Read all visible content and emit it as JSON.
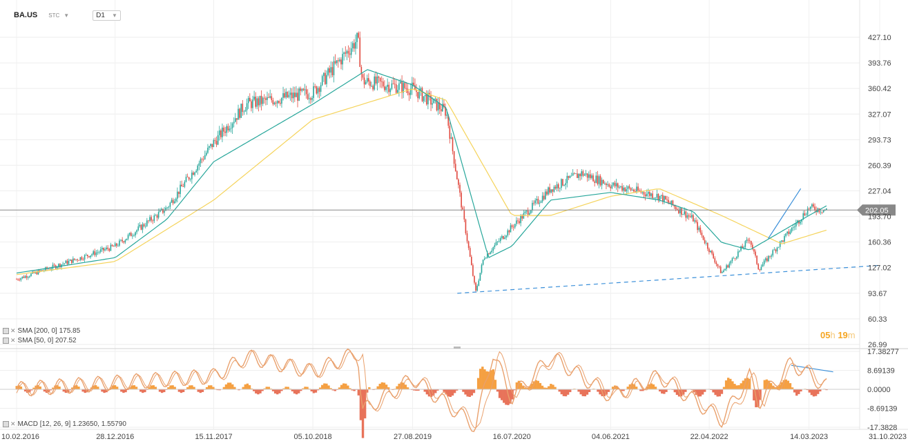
{
  "header": {
    "symbol": "BA.US",
    "exchange": "STC",
    "timeframe": "D1",
    "dropdown_icon": "chevron-down-icon"
  },
  "countdown": {
    "hours": "05",
    "h": "h",
    "minutes": "19",
    "m": "m"
  },
  "indicators": {
    "sma200": {
      "text": "SMA [200, 0] 175.85",
      "color": "#f5d35a"
    },
    "sma50": {
      "text": "SMA [50, 0] 207.52",
      "color": "#26a69a"
    },
    "macd": {
      "text": "MACD [12, 26, 9] 1.23650, 1.55790"
    }
  },
  "colors": {
    "up": "#26a69a",
    "down": "#e0463c",
    "hist_up": "#f5a042",
    "hist_down": "#e8735a",
    "macd_line": "#e9a06c",
    "trendline": "#3a8fd9",
    "price_line": "#888888",
    "price_label_bg": "#888888"
  },
  "chart_data": {
    "type": "candlestick",
    "timeframe": "D1",
    "last_price": "202.05",
    "price_axis_ticks": [
      "427.10",
      "393.76",
      "360.42",
      "327.07",
      "293.73",
      "260.39",
      "227.04",
      "193.70",
      "160.36",
      "127.02",
      "93.67",
      "60.33",
      "26.99"
    ],
    "price_ylim": [
      26.99,
      427.1
    ],
    "macd_axis_ticks": [
      "17.38277",
      "8.69139",
      "0.0000",
      "-8.69139",
      "-17.3828"
    ],
    "macd_ylim": [
      -17.3828,
      17.38277
    ],
    "date_ticks": [
      "10.02.2016",
      "28.12.2016",
      "15.11.2017",
      "05.10.2018",
      "27.08.2019",
      "16.07.2020",
      "04.06.2021",
      "22.04.2022",
      "14.03.2023",
      "31.10.2023"
    ],
    "price_path": [
      [
        "10.02.2016",
        112
      ],
      [
        "28.12.2016",
        155
      ],
      [
        "15.06.2017",
        205
      ],
      [
        "15.11.2017",
        290
      ],
      [
        "01.03.2018",
        340
      ],
      [
        "05.10.2018",
        355
      ],
      [
        "01.03.2019",
        425
      ],
      [
        "15.03.2019",
        370
      ],
      [
        "27.08.2019",
        360
      ],
      [
        "15.12.2019",
        330
      ],
      [
        "20.03.2020",
        95
      ],
      [
        "15.04.2020",
        140
      ],
      [
        "16.07.2020",
        180
      ],
      [
        "20.11.2020",
        230
      ],
      [
        "01.03.2021",
        250
      ],
      [
        "04.06.2021",
        235
      ],
      [
        "10.11.2021",
        220
      ],
      [
        "01.03.2022",
        190
      ],
      [
        "01.06.2022",
        120
      ],
      [
        "01.09.2022",
        165
      ],
      [
        "01.10.2022",
        125
      ],
      [
        "14.03.2023",
        205
      ],
      [
        "10.05.2023",
        202.05
      ]
    ],
    "sma50_path": [
      [
        "10.02.2016",
        120
      ],
      [
        "28.12.2016",
        140
      ],
      [
        "15.06.2017",
        190
      ],
      [
        "15.11.2017",
        265
      ],
      [
        "05.10.2018",
        340
      ],
      [
        "01.04.2019",
        385
      ],
      [
        "27.08.2019",
        365
      ],
      [
        "15.12.2019",
        335
      ],
      [
        "01.05.2020",
        140
      ],
      [
        "16.07.2020",
        155
      ],
      [
        "20.11.2020",
        215
      ],
      [
        "04.06.2021",
        225
      ],
      [
        "10.11.2021",
        215
      ],
      [
        "01.03.2022",
        200
      ],
      [
        "01.06.2022",
        160
      ],
      [
        "01.09.2022",
        150
      ],
      [
        "14.03.2023",
        195
      ],
      [
        "10.05.2023",
        207.52
      ]
    ],
    "sma200_path": [
      [
        "10.02.2016",
        118
      ],
      [
        "28.12.2016",
        135
      ],
      [
        "15.11.2017",
        215
      ],
      [
        "05.10.2018",
        320
      ],
      [
        "27.08.2019",
        360
      ],
      [
        "15.12.2019",
        345
      ],
      [
        "16.07.2020",
        195
      ],
      [
        "20.11.2020",
        195
      ],
      [
        "04.06.2021",
        220
      ],
      [
        "10.11.2021",
        230
      ],
      [
        "01.06.2022",
        195
      ],
      [
        "15.12.2022",
        158
      ],
      [
        "10.05.2023",
        175.85
      ]
    ],
    "trendlines": [
      {
        "from": [
          "20.01.2020",
          93.67
        ],
        "to": [
          "31.10.2023",
          130
        ],
        "style": "dashed"
      },
      {
        "from": [
          "01.11.2022",
          165
        ],
        "to": [
          "15.02.2023",
          230
        ],
        "style": "solid"
      },
      {
        "from": [
          "15.01.2023",
          11
        ],
        "to": [
          "01.06.2023",
          8
        ],
        "style": "solid",
        "pane": "macd"
      }
    ],
    "macd_path": [
      [
        "10.02.2016",
        0
      ],
      [
        "15.11.2017",
        6
      ],
      [
        "01.03.2018",
        15
      ],
      [
        "05.10.2018",
        8
      ],
      [
        "01.03.2019",
        17
      ],
      [
        "15.03.2019",
        -10
      ],
      [
        "27.08.2019",
        5
      ],
      [
        "20.03.2020",
        -17
      ],
      [
        "15.05.2020",
        17
      ],
      [
        "16.07.2020",
        -4
      ],
      [
        "20.11.2020",
        15
      ],
      [
        "04.06.2021",
        -3
      ],
      [
        "10.11.2021",
        6
      ],
      [
        "01.06.2022",
        -14
      ],
      [
        "01.09.2022",
        6
      ],
      [
        "01.10.2022",
        -6
      ],
      [
        "15.01.2023",
        12
      ],
      [
        "10.05.2023",
        1.2365
      ]
    ]
  }
}
